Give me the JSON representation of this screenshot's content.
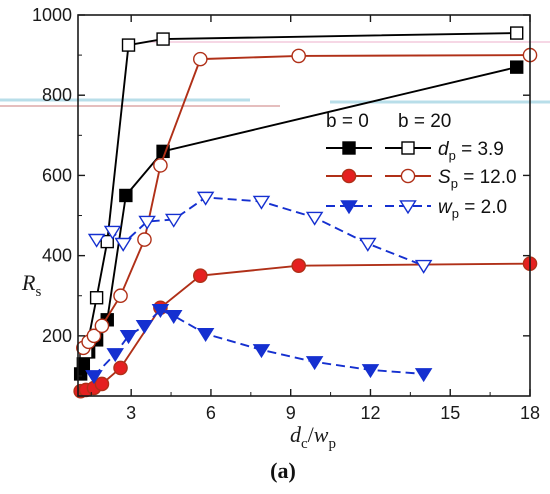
{
  "chart_data": {
    "type": "line",
    "xlabel": {
      "main": "d",
      "sub": "c",
      "sep": "/",
      "main2": "w",
      "sub2": "p"
    },
    "ylabel": {
      "main": "R",
      "sub": "s"
    },
    "panel_label": "(a)",
    "xlim": [
      1.0,
      18.0
    ],
    "ylim": [
      50,
      1000
    ],
    "xticks": [
      3,
      6,
      9,
      12,
      15,
      18
    ],
    "yticks": [
      200,
      400,
      600,
      800,
      1000
    ],
    "legend": {
      "placement": "center-right",
      "col_headers": [
        "b = 0",
        "b = 20"
      ],
      "rows": [
        {
          "label_main": "d",
          "label_sub": "p",
          "value": " =  3.9"
        },
        {
          "label_main": "S",
          "label_sub": "p",
          "value": " = 12.0"
        },
        {
          "label_main": "w",
          "label_sub": "p",
          "value": " =  2.0"
        }
      ]
    },
    "series": [
      {
        "color": "#000000",
        "marker": "square",
        "filled": true,
        "dashed": false,
        "group": "dp",
        "x": [
          1.1,
          1.2,
          1.4,
          1.7,
          2.1,
          2.8,
          4.2,
          17.5
        ],
        "y": [
          105,
          130,
          160,
          190,
          240,
          550,
          660,
          870
        ]
      },
      {
        "color": "#000000",
        "marker": "square",
        "filled": false,
        "dashed": false,
        "group": "dp",
        "x": [
          1.3,
          1.7,
          2.1,
          2.9,
          4.2,
          17.5
        ],
        "y": [
          160,
          295,
          435,
          925,
          940,
          955
        ]
      },
      {
        "color": "#b03018",
        "fill": "#e52020",
        "marker": "circle",
        "filled": true,
        "dashed": false,
        "group": "Sp",
        "x": [
          1.1,
          1.3,
          1.6,
          1.9,
          2.6,
          4.1,
          5.6,
          9.3,
          18.0
        ],
        "y": [
          62,
          65,
          70,
          80,
          120,
          270,
          350,
          375,
          380
        ]
      },
      {
        "color": "#b03018",
        "marker": "circle",
        "filled": false,
        "dashed": false,
        "group": "Sp",
        "x": [
          1.2,
          1.4,
          1.6,
          1.9,
          2.6,
          3.5,
          4.1,
          5.6,
          9.3,
          18.0
        ],
        "y": [
          170,
          185,
          200,
          225,
          300,
          440,
          625,
          890,
          898,
          900
        ]
      },
      {
        "color": "#1530d0",
        "marker": "triangle-down",
        "filled": true,
        "dashed": true,
        "group": "wp",
        "x": [
          1.6,
          2.4,
          2.9,
          3.5,
          4.1,
          4.6,
          5.8,
          7.9,
          9.9,
          12.0,
          14.0
        ],
        "y": [
          100,
          155,
          200,
          225,
          265,
          250,
          205,
          165,
          135,
          115,
          105
        ]
      },
      {
        "color": "#1530d0",
        "marker": "triangle-down",
        "filled": false,
        "dashed": true,
        "group": "wp",
        "x": [
          1.7,
          2.3,
          2.7,
          3.6,
          4.6,
          5.8,
          7.9,
          9.9,
          11.9,
          14.0
        ],
        "y": [
          440,
          460,
          430,
          485,
          490,
          545,
          535,
          495,
          430,
          375
        ]
      }
    ]
  }
}
